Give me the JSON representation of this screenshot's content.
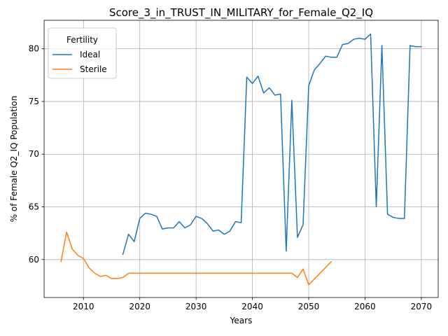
{
  "chart_data": {
    "type": "line",
    "title": "Score_3_in_TRUST_IN_MILITARY_for_Female_Q2_IQ",
    "xlabel": "Years",
    "ylabel": "% of Female Q2_IQ Population",
    "xlim": [
      2003,
      2073
    ],
    "ylim": [
      56.4,
      82.7
    ],
    "xticks": [
      2010,
      2020,
      2030,
      2040,
      2050,
      2060,
      2070
    ],
    "yticks": [
      60,
      65,
      70,
      75,
      80
    ],
    "grid": true,
    "legend": {
      "title": "Fertility",
      "placement": "top-left"
    },
    "series": [
      {
        "name": "Ideal",
        "color": "#1f77b4",
        "x": [
          2017,
          2018,
          2019,
          2020,
          2021,
          2022,
          2023,
          2024,
          2025,
          2026,
          2027,
          2028,
          2029,
          2030,
          2031,
          2032,
          2033,
          2034,
          2035,
          2036,
          2037,
          2038,
          2039,
          2040,
          2041,
          2042,
          2043,
          2044,
          2045,
          2046,
          2047,
          2048,
          2049,
          2050,
          2051,
          2052,
          2053,
          2054,
          2055,
          2056,
          2057,
          2058,
          2059,
          2060,
          2061,
          2062,
          2063,
          2064,
          2065,
          2066,
          2067,
          2068,
          2069,
          2070
        ],
        "values": [
          60.5,
          62.4,
          61.7,
          63.9,
          64.4,
          64.3,
          64.1,
          62.9,
          63.0,
          63.0,
          63.6,
          63.0,
          63.3,
          64.1,
          63.9,
          63.4,
          62.7,
          62.8,
          62.4,
          62.7,
          63.6,
          63.5,
          77.3,
          76.7,
          77.4,
          75.8,
          76.3,
          75.6,
          75.7,
          60.8,
          75.1,
          62.1,
          63.3,
          76.5,
          78.0,
          78.6,
          79.3,
          79.2,
          79.2,
          80.4,
          80.5,
          80.9,
          81.0,
          80.9,
          81.4,
          65.0,
          80.3,
          64.3,
          64.0,
          63.9,
          63.9,
          80.3,
          80.2,
          80.2
        ]
      },
      {
        "name": "Sterile",
        "color": "#ff7f0e",
        "x": [
          2006,
          2007,
          2008,
          2009,
          2010,
          2011,
          2012,
          2013,
          2014,
          2015,
          2016,
          2017,
          2018,
          2019,
          2020,
          2021,
          2022,
          2023,
          2024,
          2025,
          2026,
          2027,
          2028,
          2029,
          2030,
          2031,
          2032,
          2033,
          2034,
          2035,
          2036,
          2037,
          2038,
          2039,
          2040,
          2041,
          2042,
          2043,
          2044,
          2045,
          2046,
          2047,
          2048,
          2049,
          2050,
          2054
        ],
        "values": [
          59.8,
          62.6,
          61.0,
          60.4,
          60.1,
          59.2,
          58.7,
          58.4,
          58.5,
          58.2,
          58.2,
          58.3,
          58.7,
          58.7,
          58.7,
          58.7,
          58.7,
          58.7,
          58.7,
          58.7,
          58.7,
          58.7,
          58.7,
          58.7,
          58.7,
          58.7,
          58.7,
          58.7,
          58.7,
          58.7,
          58.7,
          58.7,
          58.7,
          58.7,
          58.7,
          58.7,
          58.7,
          58.7,
          58.7,
          58.7,
          58.7,
          58.7,
          58.3,
          59.1,
          57.6,
          59.8
        ]
      }
    ]
  }
}
